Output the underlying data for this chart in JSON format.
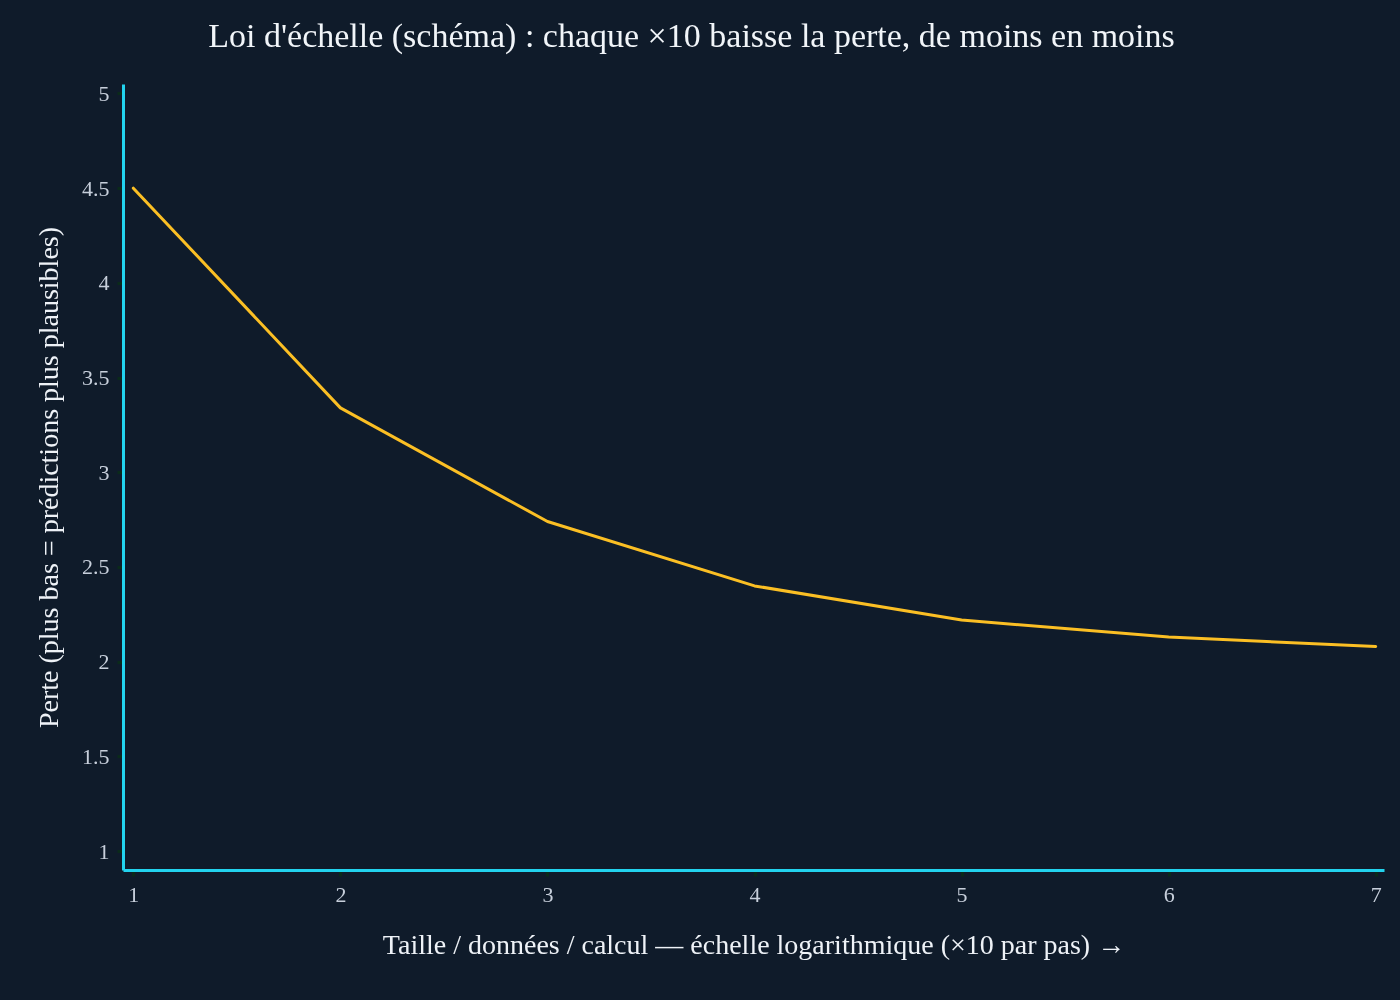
{
  "chart_data": {
    "type": "line",
    "title": "Loi d'échelle (schéma) : chaque ×10 baisse la perte, de moins en moins",
    "xlabel": "Taille / données / calcul — échelle logarithmique (×10 par pas) →",
    "ylabel": "Perte (plus bas = prédictions plus plausibles)",
    "x": [
      1,
      2,
      3,
      4,
      5,
      6,
      7
    ],
    "series": [
      {
        "color": "#fbbf24",
        "values": [
          4.5,
          3.34,
          2.74,
          2.4,
          2.22,
          2.13,
          2.08
        ]
      }
    ],
    "xlim": [
      0.95,
      7.04
    ],
    "ylim": [
      0.9,
      5.05
    ],
    "xticks": [
      1,
      2,
      3,
      4,
      5,
      6,
      7
    ],
    "yticks": [
      1,
      1.5,
      2,
      2.5,
      3,
      3.5,
      4,
      4.5,
      5
    ]
  }
}
